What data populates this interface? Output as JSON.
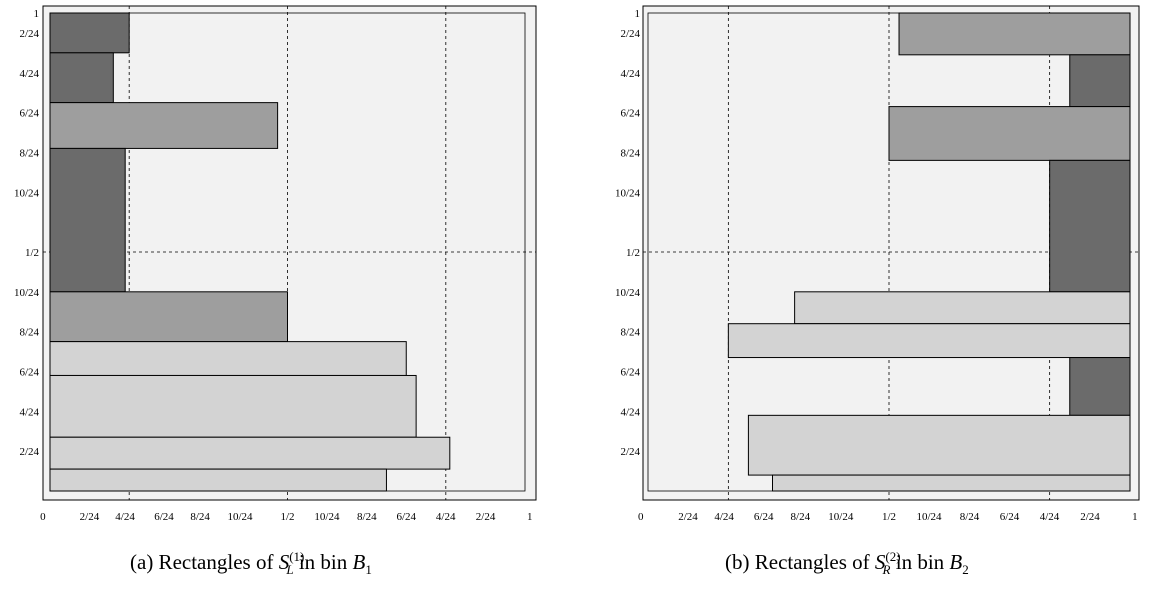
{
  "colors": {
    "background": "#f2f2f2",
    "dark": "#6b6b6b",
    "medium": "#9e9e9e",
    "light": "#d3d3d3",
    "stroke": "#000000"
  },
  "panels": [
    {
      "id": "a",
      "caption": {
        "prefix": "(a)  Rectangles of",
        "sym": "S",
        "sup": "(1)",
        "sub": "L",
        "mid": "in bin",
        "bin": "B",
        "bin_sub": "1"
      },
      "y_ticks": [
        {
          "label": "1",
          "v": 1.0
        },
        {
          "label": "2/24",
          "v": 0.9583
        },
        {
          "label": "4/24",
          "v": 0.875
        },
        {
          "label": "6/24",
          "v": 0.7917
        },
        {
          "label": "8/24",
          "v": 0.7083
        },
        {
          "label": "10/24",
          "v": 0.625
        },
        {
          "label": "1/2",
          "v": 0.5
        },
        {
          "label": "10/24",
          "v": 0.4167
        },
        {
          "label": "8/24",
          "v": 0.3333
        },
        {
          "label": "6/24",
          "v": 0.25
        },
        {
          "label": "4/24",
          "v": 0.1667
        },
        {
          "label": "2/24",
          "v": 0.0833
        }
      ],
      "x_ticks": [
        {
          "label": "0",
          "v": -0.015
        },
        {
          "label": "2/24",
          "v": 0.083
        },
        {
          "label": "4/24",
          "v": 0.158
        },
        {
          "label": "6/24",
          "v": 0.24
        },
        {
          "label": "8/24",
          "v": 0.316
        },
        {
          "label": "10/24",
          "v": 0.4
        },
        {
          "label": "1/2",
          "v": 0.5
        },
        {
          "label": "10/24",
          "v": 0.583
        },
        {
          "label": "8/24",
          "v": 0.667
        },
        {
          "label": "6/24",
          "v": 0.75
        },
        {
          "label": "4/24",
          "v": 0.833
        },
        {
          "label": "2/24",
          "v": 0.917
        },
        {
          "label": "1",
          "v": 1.01
        }
      ],
      "grid_x": [
        0.1667,
        0.5,
        0.8333
      ],
      "grid_y": [
        0.5
      ],
      "rects": [
        {
          "x0": 0,
          "x1": 0.1667,
          "y0": 0.9167,
          "y1": 1.0,
          "shade": "dark"
        },
        {
          "x0": 0,
          "x1": 0.1333,
          "y0": 0.8125,
          "y1": 0.9167,
          "shade": "dark"
        },
        {
          "x0": 0,
          "x1": 0.4792,
          "y0": 0.7167,
          "y1": 0.8125,
          "shade": "medium"
        },
        {
          "x0": 0,
          "x1": 0.1583,
          "y0": 0.4167,
          "y1": 0.7167,
          "shade": "dark"
        },
        {
          "x0": 0,
          "x1": 0.5,
          "y0": 0.3125,
          "y1": 0.4167,
          "shade": "medium"
        },
        {
          "x0": 0,
          "x1": 0.75,
          "y0": 0.2417,
          "y1": 0.3125,
          "shade": "light"
        },
        {
          "x0": 0,
          "x1": 0.7708,
          "y0": 0.1125,
          "y1": 0.2417,
          "shade": "light"
        },
        {
          "x0": 0,
          "x1": 0.8417,
          "y0": 0.0458,
          "y1": 0.1125,
          "shade": "light"
        },
        {
          "x0": 0,
          "x1": 0.7083,
          "y0": 0.0,
          "y1": 0.0458,
          "shade": "light"
        }
      ]
    },
    {
      "id": "b",
      "caption": {
        "prefix": "(b)  Rectangles of",
        "sym": "S",
        "sup": "(2)",
        "sub": "R",
        "mid": "in bin",
        "bin": "B",
        "bin_sub": "2"
      },
      "y_ticks": [
        {
          "label": "1",
          "v": 1.0
        },
        {
          "label": "2/24",
          "v": 0.9583
        },
        {
          "label": "4/24",
          "v": 0.875
        },
        {
          "label": "6/24",
          "v": 0.7917
        },
        {
          "label": "8/24",
          "v": 0.7083
        },
        {
          "label": "10/24",
          "v": 0.625
        },
        {
          "label": "1/2",
          "v": 0.5
        },
        {
          "label": "10/24",
          "v": 0.4167
        },
        {
          "label": "8/24",
          "v": 0.3333
        },
        {
          "label": "6/24",
          "v": 0.25
        },
        {
          "label": "4/24",
          "v": 0.1667
        },
        {
          "label": "2/24",
          "v": 0.0833
        }
      ],
      "x_ticks": [
        {
          "label": "0",
          "v": -0.015
        },
        {
          "label": "2/24",
          "v": 0.083
        },
        {
          "label": "4/24",
          "v": 0.158
        },
        {
          "label": "6/24",
          "v": 0.24
        },
        {
          "label": "8/24",
          "v": 0.316
        },
        {
          "label": "10/24",
          "v": 0.4
        },
        {
          "label": "1/2",
          "v": 0.5
        },
        {
          "label": "10/24",
          "v": 0.583
        },
        {
          "label": "8/24",
          "v": 0.667
        },
        {
          "label": "6/24",
          "v": 0.75
        },
        {
          "label": "4/24",
          "v": 0.833
        },
        {
          "label": "2/24",
          "v": 0.917
        },
        {
          "label": "1",
          "v": 1.01
        }
      ],
      "grid_x": [
        0.1667,
        0.5,
        0.8333
      ],
      "grid_y": [
        0.5
      ],
      "rects": [
        {
          "x0": 0.5208,
          "x1": 1.0,
          "y0": 0.9125,
          "y1": 1.0,
          "shade": "medium"
        },
        {
          "x0": 0.875,
          "x1": 1.0,
          "y0": 0.8042,
          "y1": 0.9125,
          "shade": "dark"
        },
        {
          "x0": 0.5,
          "x1": 1.0,
          "y0": 0.6917,
          "y1": 0.8042,
          "shade": "medium"
        },
        {
          "x0": 0.8333,
          "x1": 1.0,
          "y0": 0.4167,
          "y1": 0.6917,
          "shade": "dark"
        },
        {
          "x0": 0.3042,
          "x1": 1.0,
          "y0": 0.35,
          "y1": 0.4167,
          "shade": "light"
        },
        {
          "x0": 0.1667,
          "x1": 1.0,
          "y0": 0.2792,
          "y1": 0.35,
          "shade": "light"
        },
        {
          "x0": 0.875,
          "x1": 1.0,
          "y0": 0.1583,
          "y1": 0.2792,
          "shade": "dark"
        },
        {
          "x0": 0.2083,
          "x1": 1.0,
          "y0": 0.0333,
          "y1": 0.1583,
          "shade": "light"
        },
        {
          "x0": 0.2583,
          "x1": 1.0,
          "y0": 0.0,
          "y1": 0.0333,
          "shade": "light"
        }
      ]
    }
  ]
}
